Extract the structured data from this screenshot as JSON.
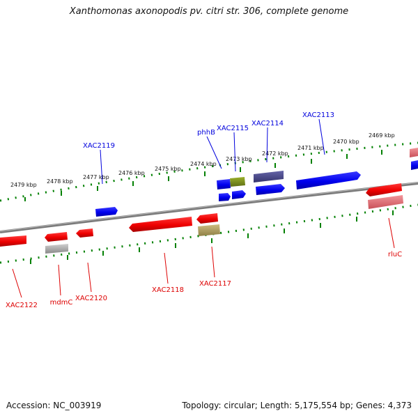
{
  "title": "Xanthomonas axonopodis pv. citri str. 306, complete genome",
  "footer": {
    "accession": "Accession: NC_003919",
    "topology": "Topology: circular; Length: 5,175,554 bp; Genes: 4,373"
  },
  "kbp_labels": [
    "2479 kbp",
    "2478 kbp",
    "2477 kbp",
    "2476 kbp",
    "2475 kbp",
    "2474 kbp",
    "2473 kbp",
    "2472 kbp",
    "2471 kbp",
    "2470 kbp",
    "2469 kbp"
  ],
  "gene_labels_top": [
    "XAC2119",
    "phhB",
    "XAC2115",
    "XAC2114",
    "XAC2113"
  ],
  "gene_labels_bottom": [
    "XAC2122",
    "mdmC",
    "XAC2120",
    "XAC2118",
    "XAC2117",
    "rluC"
  ],
  "colors": {
    "forward_strand": "#0000ee",
    "reverse_strand": "#ee0000",
    "backbone": "#808080",
    "ticks": "#008000",
    "rRNA_olive": "#7a8c1e",
    "dark_blue": "#4b4a8c",
    "pink": "#e06a70",
    "grey_gene": "#a9a9a9",
    "khaki": "#b0a060"
  }
}
